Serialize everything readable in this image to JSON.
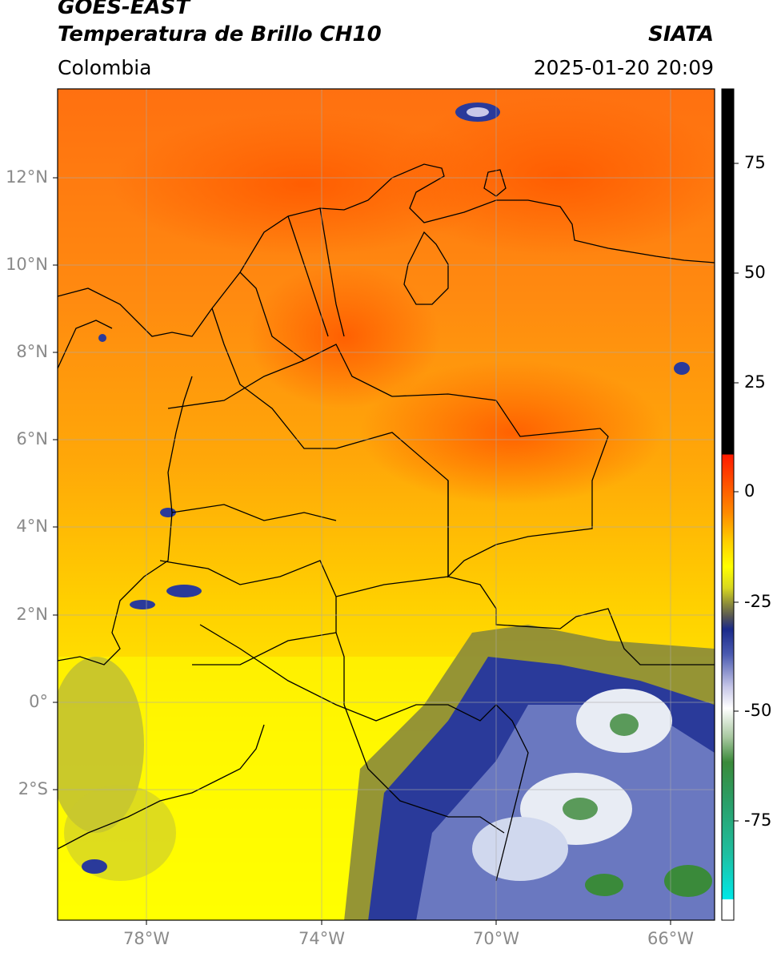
{
  "header": {
    "satellite": "GOES-EAST",
    "product": "Temperatura de Brillo CH10",
    "institution": "SIATA",
    "region": "Colombia",
    "datetime": "2025-01-20 20:09"
  },
  "map": {
    "lat_labels": [
      "12°N",
      "10°N",
      "8°N",
      "6°N",
      "4°N",
      "2°N",
      "0°",
      "2°S"
    ],
    "lon_labels": [
      "78°W",
      "74°W",
      "70°W",
      "66°W"
    ],
    "colorbar": {
      "ticks": [
        "75",
        "50",
        "25",
        "0",
        "-25",
        "-50",
        "-75"
      ],
      "colors": {
        "black": "#000000",
        "red": "#ff2a00",
        "orange": "#ff8a00",
        "yellow": "#ffff00",
        "olive": "#9a9a40",
        "navy": "#1a2a8a",
        "white": "#ffffff",
        "green": "#3a8a3a",
        "teal": "#1fbf9f",
        "cyan": "#00e0e0"
      }
    }
  }
}
